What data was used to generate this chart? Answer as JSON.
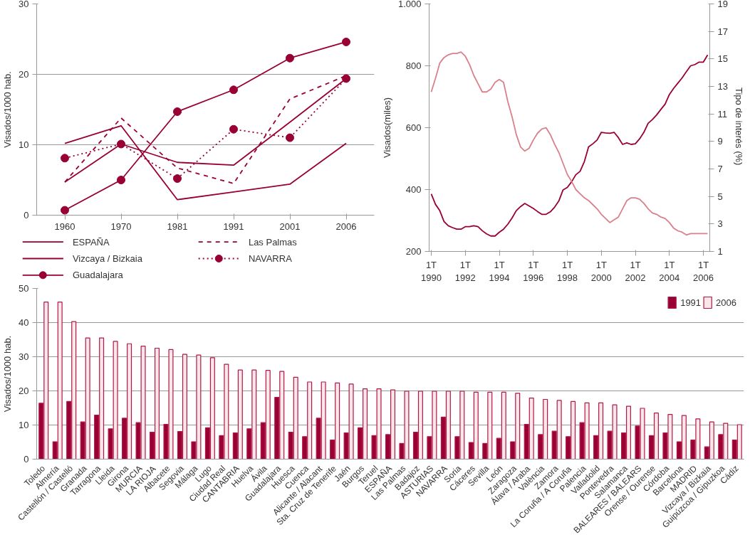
{
  "chart_data": [
    {
      "type": "line",
      "ylabel": "Visados/1000 hab.",
      "categories": [
        "1960",
        "1970",
        "1981",
        "1991",
        "2001",
        "2006"
      ],
      "ylim": [
        0,
        30
      ],
      "yticks": [
        0,
        10,
        20,
        30
      ],
      "grid": "y",
      "legend": "bottom",
      "series": [
        {
          "name": "ESPAÑA",
          "color": "#990033",
          "line_style": "solid",
          "values": [
            4.7,
            10.1,
            7.5,
            7.1,
            13.2,
            19.4
          ]
        },
        {
          "name": "Vizcaya / Bizkaia",
          "color": "#990033",
          "line_style": "solid",
          "values": [
            10.2,
            12.7,
            2.2,
            3.3,
            4.4,
            10.2
          ]
        },
        {
          "name": "Guadalajara",
          "color": "#990033",
          "line_style": "solid",
          "marker": "circle",
          "values": [
            0.7,
            5.0,
            14.7,
            17.8,
            22.3,
            24.6
          ]
        },
        {
          "name": "Las Palmas",
          "color": "#990033",
          "line_style": "dashed",
          "values": [
            4.7,
            13.8,
            6.7,
            4.5,
            16.5,
            19.8
          ]
        },
        {
          "name": "NAVARRA",
          "color": "#990033",
          "line_style": "dotted",
          "marker": "circle",
          "values": [
            8.1,
            10.1,
            5.2,
            12.2,
            11.0,
            19.4
          ]
        }
      ]
    },
    {
      "type": "line",
      "ylabel": "Visados(miles)",
      "y2label": "Tipo de interés  (%)",
      "grid": false,
      "categories": [
        "1T\n1990",
        null,
        null,
        null,
        null,
        null,
        null,
        null,
        "1T\n1992",
        null,
        null,
        null,
        null,
        null,
        null,
        null,
        "1T\n1994",
        null,
        null,
        null,
        null,
        null,
        null,
        null,
        "1T\n1996",
        null,
        null,
        null,
        null,
        null,
        null,
        null,
        "1T\n1998",
        null,
        null,
        null,
        null,
        null,
        null,
        null,
        "1T\n2000",
        null,
        null,
        null,
        null,
        null,
        null,
        null,
        "1T\n2002",
        null,
        null,
        null,
        null,
        null,
        null,
        null,
        "1T\n2004",
        null,
        null,
        null,
        null,
        null,
        null,
        null,
        "1T\n2006",
        null
      ],
      "ylim": [
        200,
        1000
      ],
      "yticks": [
        200,
        400,
        600,
        800,
        {
          "value": 1000,
          "label": "1.000"
        }
      ],
      "y2lim": [
        1,
        19
      ],
      "y2ticks": [
        1,
        3,
        5,
        7,
        9,
        11,
        13,
        15,
        17,
        19
      ],
      "series": [
        {
          "color": "#990033",
          "values": [
            386,
            352,
            332,
            297,
            283,
            277,
            272,
            272,
            280,
            280,
            283,
            280,
            267,
            257,
            250,
            250,
            262,
            272,
            288,
            308,
            332,
            345,
            355,
            347,
            339,
            329,
            320,
            320,
            328,
            343,
            363,
            399,
            407,
            425,
            448,
            459,
            490,
            538,
            548,
            560,
            585,
            583,
            582,
            585,
            568,
            546,
            551,
            546,
            548,
            564,
            585,
            614,
            626,
            641,
            659,
            676,
            707,
            727,
            744,
            761,
            781,
            800,
            804,
            812,
            812,
            835
          ]
        },
        {
          "color": "#d9808c",
          "axis": "y2",
          "values": [
            12.6,
            13.6,
            14.7,
            15.1,
            15.3,
            15.4,
            15.4,
            15.5,
            15.2,
            14.6,
            13.8,
            13.2,
            12.6,
            12.6,
            12.8,
            13.3,
            13.5,
            13.3,
            11.9,
            10.8,
            9.5,
            8.6,
            8.3,
            8.5,
            9.1,
            9.6,
            9.9,
            10.0,
            9.5,
            8.8,
            8.2,
            7.4,
            6.6,
            6.1,
            5.5,
            5.2,
            4.9,
            4.7,
            4.4,
            4.1,
            3.7,
            3.4,
            3.1,
            3.3,
            3.5,
            4.1,
            4.7,
            4.9,
            4.9,
            4.8,
            4.5,
            4.1,
            3.8,
            3.7,
            3.5,
            3.4,
            3.1,
            2.7,
            2.5,
            2.4,
            2.2,
            2.3,
            2.3,
            2.3,
            2.3,
            2.3
          ]
        }
      ]
    },
    {
      "type": "bar",
      "ylabel": "Visados/1000 hab.",
      "ylim": [
        0,
        50
      ],
      "yticks": [
        0,
        10,
        20,
        30,
        40,
        50
      ],
      "grid": "y",
      "legend": "top right",
      "categories": [
        "Toledo",
        "Almería",
        "Castellón / Castelló",
        "Granada",
        "Tarragona",
        "Lleida",
        "Girona",
        "MURCIA",
        "LA RIOJA",
        "Albacete",
        "Segovia",
        "Málaga",
        "Lugo",
        "Ciudad Real",
        "CANTABRIA",
        "Huelva",
        "Ávila",
        "Guadalajara",
        "Huesca",
        "Cuenca",
        "Alicante / Alacant",
        "Sta. Cruz de Tenerife",
        "Jaén",
        "Burgos",
        "Teruel",
        "ESPAÑA",
        "Las Palmas",
        "Badajoz",
        "ASTURIAS",
        "NAVARRA",
        "Soria",
        "Cáceres",
        "Sevilla",
        "León",
        "Zaragoza",
        "Álava / Araba",
        "València",
        "Zamora",
        "La Coruña / A Coruña",
        "Palencia",
        "Valladolid",
        "Pontevedra",
        "Salamanca",
        "BALEARES / BALEARS",
        "Orense / Ourense",
        "Córdoba",
        "Barcelona",
        "MADRID",
        "Vizcaya / Bizkaia",
        "Guipúzcoa / Gipuzkoa",
        "Cádiz"
      ],
      "series": [
        {
          "name": "1991",
          "color": "#990033",
          "values": [
            16.4,
            5.1,
            16.9,
            10.9,
            12.9,
            8.9,
            12.0,
            10.7,
            7.9,
            10.2,
            8.1,
            5.1,
            9.2,
            6.9,
            7.7,
            8.9,
            10.7,
            18.1,
            7.9,
            6.6,
            12.0,
            5.6,
            7.7,
            9.2,
            6.9,
            7.2,
            4.6,
            7.9,
            6.6,
            12.3,
            6.6,
            4.9,
            4.6,
            6.1,
            5.1,
            10.2,
            7.2,
            8.2,
            6.6,
            10.7,
            6.9,
            8.2,
            7.7,
            9.7,
            6.9,
            7.7,
            5.1,
            5.6,
            3.6,
            7.2,
            5.6
          ]
        },
        {
          "name": "2006",
          "color": "#fbe6ea",
          "values": [
            46.0,
            46.0,
            40.3,
            35.5,
            35.5,
            34.5,
            33.8,
            33.1,
            32.5,
            32.1,
            30.7,
            30.5,
            29.7,
            27.8,
            26.1,
            26.1,
            26.0,
            25.7,
            24.0,
            22.6,
            22.6,
            22.3,
            22.0,
            20.6,
            20.6,
            20.3,
            19.9,
            19.9,
            19.9,
            19.9,
            19.9,
            19.6,
            19.6,
            19.6,
            19.3,
            17.9,
            17.5,
            17.2,
            16.9,
            16.5,
            16.5,
            15.9,
            15.5,
            14.9,
            13.5,
            13.1,
            12.8,
            11.8,
            10.9,
            10.5,
            10.1
          ]
        }
      ]
    }
  ]
}
